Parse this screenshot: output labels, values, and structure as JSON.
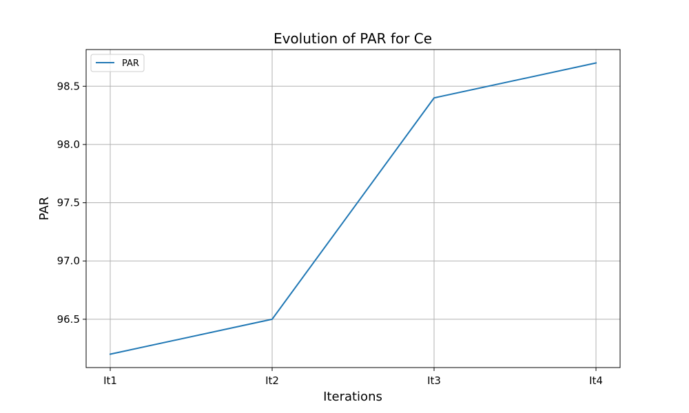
{
  "chart_data": {
    "type": "line",
    "title": "Evolution of PAR for Ce",
    "xlabel": "Iterations",
    "ylabel": "PAR",
    "categories": [
      "It1",
      "It2",
      "It3",
      "It4"
    ],
    "series": [
      {
        "name": "PAR",
        "values": [
          96.2,
          96.5,
          98.4,
          98.7
        ],
        "color": "#1f77b4"
      }
    ],
    "ylim": [
      96.085,
      98.815
    ],
    "yticks": [
      96.5,
      97.0,
      97.5,
      98.0,
      98.5
    ],
    "ytick_labels": [
      "96.5",
      "97.0",
      "97.5",
      "98.0",
      "98.5"
    ],
    "grid": true,
    "legend_position": "upper left"
  }
}
